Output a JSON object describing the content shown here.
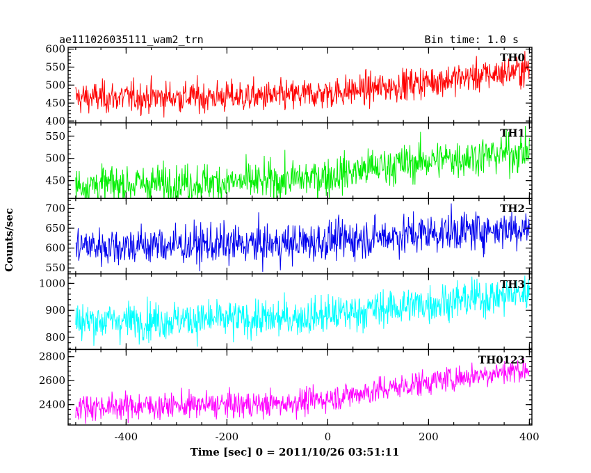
{
  "header": {
    "title": "ae111026035111_wam2_trn",
    "bin_time": "Bin time: 1.0 s"
  },
  "chart_data": {
    "type": "line",
    "xlabel": "Time [sec] 0 = 2011/10/26 03:51:11",
    "ylabel": "Counts/sec",
    "xlim": [
      -515,
      405
    ],
    "xticks": [
      -400,
      -200,
      0,
      200,
      400
    ],
    "bin_seconds": 1.0,
    "x_start": -500,
    "x_end": 400,
    "panels": [
      {
        "name": "TH0",
        "color": "#ff0000",
        "ylim": [
          395,
          605
        ],
        "yticks": [
          400,
          450,
          500,
          550,
          600
        ],
        "trend": [
          [
            -500,
            465
          ],
          [
            -100,
            468
          ],
          [
            0,
            478
          ],
          [
            100,
            492
          ],
          [
            200,
            510
          ],
          [
            300,
            525
          ],
          [
            400,
            545
          ]
        ],
        "noise_sd": 22
      },
      {
        "name": "TH1",
        "color": "#00ee00",
        "ylim": [
          410,
          580
        ],
        "yticks": [
          450,
          500,
          550
        ],
        "trend": [
          [
            -500,
            440
          ],
          [
            -100,
            448
          ],
          [
            0,
            460
          ],
          [
            100,
            480
          ],
          [
            200,
            495
          ],
          [
            300,
            505
          ],
          [
            400,
            515
          ]
        ],
        "noise_sd": 22
      },
      {
        "name": "TH2",
        "color": "#0000ee",
        "ylim": [
          535,
          725
        ],
        "yticks": [
          550,
          600,
          650,
          700
        ],
        "trend": [
          [
            -500,
            605
          ],
          [
            -100,
            610
          ],
          [
            0,
            618
          ],
          [
            100,
            628
          ],
          [
            200,
            638
          ],
          [
            300,
            645
          ],
          [
            400,
            652
          ]
        ],
        "noise_sd": 25
      },
      {
        "name": "TH3",
        "color": "#00ffff",
        "ylim": [
          755,
          1035
        ],
        "yticks": [
          800,
          900,
          1000
        ],
        "trend": [
          [
            -500,
            860
          ],
          [
            -100,
            868
          ],
          [
            0,
            882
          ],
          [
            100,
            905
          ],
          [
            200,
            925
          ],
          [
            300,
            945
          ],
          [
            400,
            965
          ]
        ],
        "noise_sd": 35
      },
      {
        "name": "TH0123",
        "color": "#ff00ff",
        "ylim": [
          2230,
          2860
        ],
        "yticks": [
          2400,
          2600,
          2800
        ],
        "trend": [
          [
            -500,
            2380
          ],
          [
            -100,
            2405
          ],
          [
            0,
            2450
          ],
          [
            100,
            2520
          ],
          [
            200,
            2590
          ],
          [
            300,
            2650
          ],
          [
            400,
            2700
          ]
        ],
        "noise_sd": 55
      }
    ]
  }
}
